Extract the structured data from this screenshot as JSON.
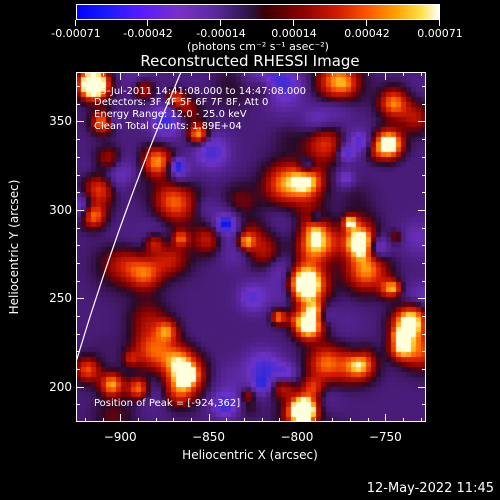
{
  "colorbar": {
    "tick_labels": [
      "-0.00071",
      "-0.00042",
      "-0.00014",
      "0.00014",
      "0.00042",
      "0.00071"
    ],
    "unit_label": "(photons cm⁻² s⁻¹ asec⁻²)"
  },
  "chart_data": {
    "type": "heatmap",
    "title": "Reconstructed RHESSI Image",
    "xlabel": "Heliocentric X (arcsec)",
    "ylabel": "Heliocentric Y (arcsec)",
    "xlim": [
      -925,
      -727
    ],
    "ylim": [
      180,
      378
    ],
    "x_ticks": [
      -900,
      -850,
      -800,
      -750
    ],
    "y_ticks": [
      200,
      250,
      300,
      350
    ],
    "colorbar_range": [
      -0.00071,
      0.00071
    ],
    "colormap": "blue-purple-red-yellow-white",
    "peak_position": [
      -924,
      362
    ],
    "limb": true,
    "grid": false
  },
  "annotations": {
    "time": "25-Jul-2011 14:41:08.000 to 14:47:08.000",
    "detectors": "Detectors: 3F 4F 5F 6F 7F 8F, Att 0",
    "energy": "Energy Range: 12.0 - 25.0 keV",
    "clean": "Clean     Total counts: 1.89E+04",
    "peak": "Position of Peak = [-924,362]"
  },
  "footer": {
    "timestamp": "12-May-2022 11:45"
  }
}
